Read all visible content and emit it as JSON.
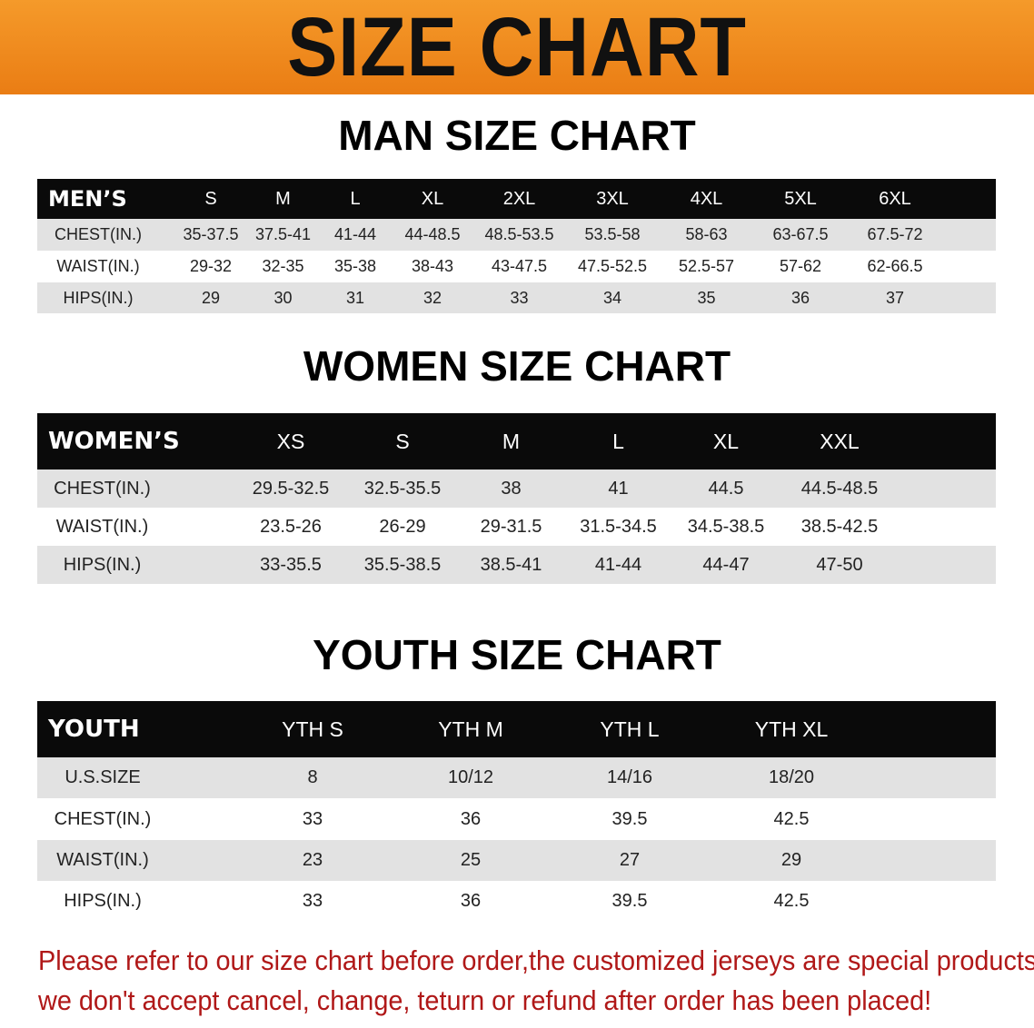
{
  "banner_title": "SIZE CHART",
  "men": {
    "title": "MAN SIZE CHART",
    "header": [
      "MEN’S",
      "S",
      "M",
      "L",
      "XL",
      "2XL",
      "3XL",
      "4XL",
      "5XL",
      "6XL"
    ],
    "rows": [
      [
        "CHEST(IN.)",
        "35-37.5",
        "37.5-41",
        "41-44",
        "44-48.5",
        "48.5-53.5",
        "53.5-58",
        "58-63",
        "63-67.5",
        "67.5-72"
      ],
      [
        "WAIST(IN.)",
        "29-32",
        "32-35",
        "35-38",
        "38-43",
        "43-47.5",
        "47.5-52.5",
        "52.5-57",
        "57-62",
        "62-66.5"
      ],
      [
        "HIPS(IN.)",
        "29",
        "30",
        "31",
        "32",
        "33",
        "34",
        "35",
        "36",
        "37"
      ]
    ]
  },
  "women": {
    "title": "WOMEN SIZE CHART",
    "header": [
      "WOMEN’S",
      "XS",
      "S",
      "M",
      "L",
      "XL",
      "XXL"
    ],
    "rows": [
      [
        "CHEST(IN.)",
        "29.5-32.5",
        "32.5-35.5",
        "38",
        "41",
        "44.5",
        "44.5-48.5"
      ],
      [
        "WAIST(IN.)",
        "23.5-26",
        "26-29",
        "29-31.5",
        "31.5-34.5",
        "34.5-38.5",
        "38.5-42.5"
      ],
      [
        "HIPS(IN.)",
        "33-35.5",
        "35.5-38.5",
        "38.5-41",
        "41-44",
        "44-47",
        "47-50"
      ]
    ]
  },
  "youth": {
    "title": "YOUTH SIZE CHART",
    "header": [
      "YOUTH",
      "YTH S",
      "YTH M",
      "YTH L",
      "YTH XL"
    ],
    "rows": [
      [
        "U.S.SIZE",
        "8",
        "10/12",
        "14/16",
        "18/20"
      ],
      [
        "CHEST(IN.)",
        "33",
        "36",
        "39.5",
        "42.5"
      ],
      [
        "WAIST(IN.)",
        "23",
        "25",
        "27",
        "29"
      ],
      [
        "HIPS(IN.)",
        "33",
        "36",
        "39.5",
        "42.5"
      ]
    ]
  },
  "notice": {
    "line1": "Please refer to our size chart before order,the customized jerseys are special products,",
    "line2": "we don't accept cancel, change, teturn or refund after order has been placed!"
  },
  "colors": {
    "banner": "#ef8a1e",
    "header_row": "#0a0a0a",
    "stripe": "#e2e2e2",
    "notice": "#b01818"
  }
}
